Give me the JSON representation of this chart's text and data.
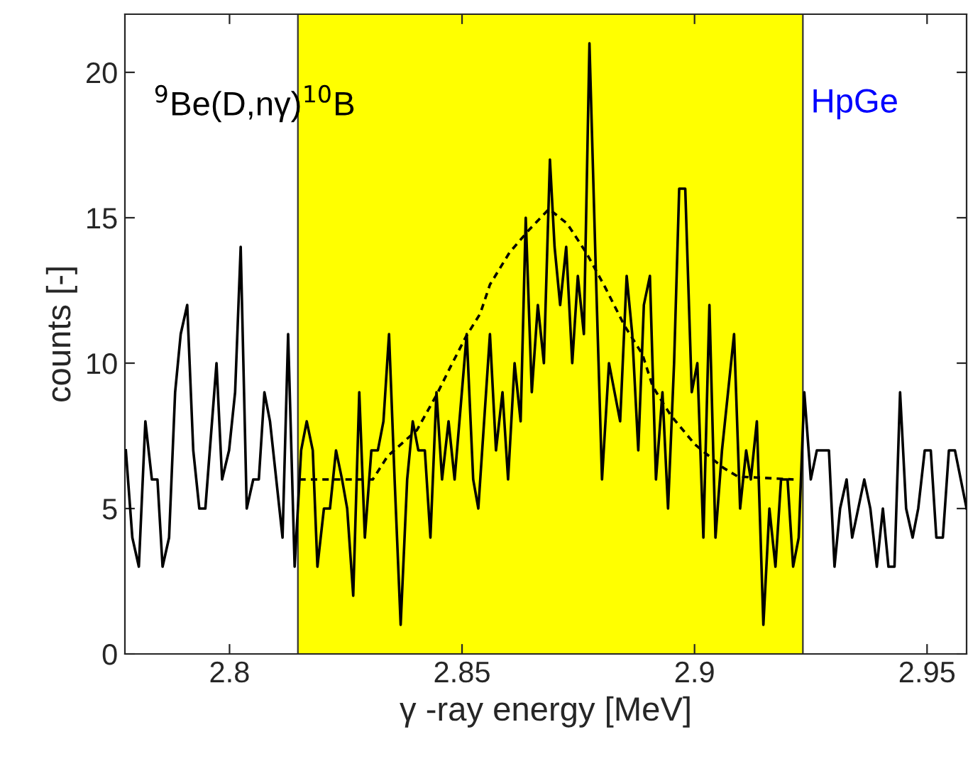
{
  "chart_data": {
    "type": "line",
    "xlabel": "γ -ray energy [MeV]",
    "ylabel": "counts [-]",
    "annotations": [
      "$^{9}$Be(D,nγ)$^{10}$B",
      "HpGe"
    ],
    "xlim": [
      2.7775,
      2.9585
    ],
    "xticks": [
      2.8,
      2.85,
      2.9,
      2.95
    ],
    "ylim": [
      0,
      22
    ],
    "yticks": [
      0,
      5,
      10,
      15,
      20
    ],
    "grid": false,
    "legend": false,
    "bands": [
      {
        "axis": "x",
        "from": 2.8147,
        "to": 2.9233,
        "label": null,
        "color": "#ffff00"
      }
    ],
    "series": [
      {
        "color": "#000000",
        "line_style": "solid",
        "x": [
          2.7777,
          2.7791,
          2.7805,
          2.7819,
          2.7833,
          2.7845,
          2.7856,
          2.787,
          2.7883,
          2.7895,
          2.7909,
          2.7922,
          2.7935,
          2.7948,
          2.7972,
          2.7984,
          2.7999,
          2.8012,
          2.8024,
          2.8037,
          2.8051,
          2.8063,
          2.8075,
          2.8087,
          2.8114,
          2.8126,
          2.814,
          2.8154,
          2.8166,
          2.8179,
          2.8189,
          2.8203,
          2.8216,
          2.8229,
          2.8242,
          2.8253,
          2.8266,
          2.8279,
          2.8291,
          2.8305,
          2.8319,
          2.8331,
          2.8343,
          2.8355,
          2.8368,
          2.8382,
          2.8394,
          2.8406,
          2.842,
          2.8432,
          2.8445,
          2.8457,
          2.8471,
          2.8484,
          2.851,
          2.8524,
          2.8535,
          2.856,
          2.8573,
          2.8587,
          2.8599,
          2.8613,
          2.8626,
          2.8637,
          2.865,
          2.8663,
          2.8676,
          2.8689,
          2.8699,
          2.8711,
          2.8724,
          2.8737,
          2.8749,
          2.8762,
          2.8774,
          2.8788,
          2.8801,
          2.8816,
          2.884,
          2.8854,
          2.8866,
          2.8879,
          2.8891,
          2.8904,
          2.8917,
          2.8931,
          2.8943,
          2.8956,
          2.8967,
          2.898,
          2.8994,
          2.9006,
          2.9019,
          2.9032,
          2.9045,
          2.9059,
          2.9085,
          2.9098,
          2.9111,
          2.9121,
          2.9134,
          2.9148,
          2.9161,
          2.9174,
          2.9186,
          2.92,
          2.9212,
          2.9224,
          2.9236,
          2.925,
          2.9263,
          2.9289,
          2.9301,
          2.9313,
          2.9327,
          2.9339,
          2.9365,
          2.9378,
          2.9392,
          2.9405,
          2.9417,
          2.943,
          2.9442,
          2.9455,
          2.9469,
          2.9481,
          2.9495,
          2.9508,
          2.952,
          2.9534,
          2.9547,
          2.956,
          2.9585
        ],
        "values": [
          7,
          4,
          3,
          8,
          6,
          6,
          3,
          4,
          9,
          11,
          12,
          7,
          5,
          5,
          10,
          6,
          7,
          9,
          14,
          5,
          6,
          6,
          9,
          8,
          4,
          11,
          3,
          7,
          8,
          7,
          3,
          5,
          5,
          7,
          6,
          5,
          2,
          9,
          4,
          7,
          7,
          8,
          11,
          6,
          1,
          6,
          8,
          7,
          7,
          4,
          9,
          6,
          8,
          6,
          11,
          6,
          5,
          11,
          7,
          9,
          6,
          10,
          8,
          15,
          9,
          12,
          10,
          17,
          14,
          12,
          14,
          10,
          13,
          11,
          21,
          13,
          6,
          10,
          8,
          13,
          11,
          7,
          12,
          13,
          6,
          9,
          5,
          10,
          16,
          16,
          9,
          10,
          4,
          12,
          4,
          7,
          11,
          5,
          7,
          6,
          8,
          1,
          5,
          3,
          6,
          6,
          3,
          4,
          9,
          6,
          7,
          7,
          3,
          5,
          6,
          4,
          6,
          5,
          3,
          5,
          3,
          3,
          9,
          5,
          4,
          5,
          7,
          7,
          4,
          4,
          7,
          7,
          5
        ]
      },
      {
        "color": "#000000",
        "line_style": "dashed",
        "x": [
          2.815,
          2.8308,
          2.834,
          2.8403,
          2.8445,
          2.8476,
          2.8508,
          2.8539,
          2.856,
          2.8602,
          2.8645,
          2.8687,
          2.8726,
          2.8767,
          2.8808,
          2.8849,
          2.8888,
          2.891,
          2.8949,
          2.9001,
          2.9062,
          2.9093,
          2.9213
        ],
        "values": [
          6,
          6,
          6.8,
          7.7,
          8.9,
          9.9,
          10.9,
          11.7,
          12.7,
          13.8,
          14.6,
          15.3,
          14.8,
          13.8,
          12.6,
          11.3,
          10.3,
          9.2,
          8.2,
          7.2,
          6.4,
          6.1,
          6
        ]
      }
    ]
  }
}
